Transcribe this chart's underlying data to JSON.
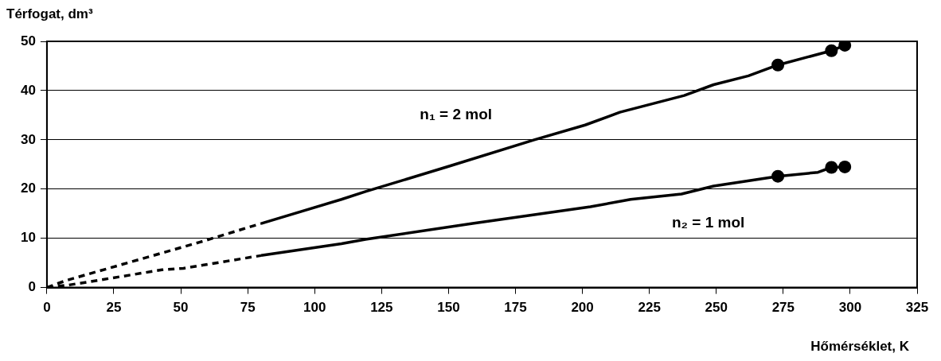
{
  "chart_data": {
    "type": "line",
    "xlabel": "Hőmérséklet, K",
    "ylabel": "Térfogat, dm³",
    "xlim": [
      0,
      325
    ],
    "xticks": [
      0,
      25,
      50,
      75,
      100,
      125,
      150,
      175,
      200,
      225,
      250,
      275,
      300,
      325
    ],
    "ylim": [
      0,
      50
    ],
    "yticks": [
      0,
      10,
      20,
      30,
      40,
      50
    ],
    "grid": "y",
    "legend": false,
    "series": [
      {
        "color": "#000000",
        "line_style": "dashed",
        "marker": "none",
        "x": [
          0,
          7,
          57,
          80
        ],
        "values": [
          0,
          1.4,
          9.2,
          13
        ]
      },
      {
        "color": "#000000",
        "line_style": "solid",
        "marker": "none",
        "x": [
          80,
          110,
          119,
          150,
          182,
          201,
          214,
          238,
          249,
          262,
          273,
          293,
          298
        ],
        "values": [
          13,
          17.9,
          19.5,
          24.6,
          30,
          33,
          35.6,
          39,
          41.2,
          43,
          45.2,
          48.1,
          49.2
        ]
      },
      {
        "type": "scatter",
        "color": "#000000",
        "marker": "circle",
        "x": [
          273,
          293,
          298
        ],
        "values": [
          45.2,
          48.1,
          49.2
        ]
      },
      {
        "color": "#000000",
        "line_style": "dashed",
        "marker": "none",
        "x": [
          0,
          8,
          15,
          43,
          51,
          80
        ],
        "values": [
          0,
          0.5,
          1.1,
          3.6,
          3.9,
          6.5
        ]
      },
      {
        "color": "#000000",
        "line_style": "solid",
        "marker": "none",
        "x": [
          80,
          110,
          119,
          159,
          203,
          218,
          237,
          249,
          273,
          288,
          293,
          298
        ],
        "values": [
          6.5,
          8.9,
          9.8,
          13,
          16.4,
          17.9,
          19,
          20.6,
          22.6,
          23.4,
          24.4,
          24.5
        ]
      },
      {
        "type": "scatter",
        "color": "#000000",
        "marker": "circle",
        "x": [
          273,
          293,
          298
        ],
        "values": [
          22.6,
          24.4,
          24.5
        ]
      }
    ],
    "annotations": [
      "n₁ = 2 mol",
      "n₂ = 1 mol"
    ]
  }
}
